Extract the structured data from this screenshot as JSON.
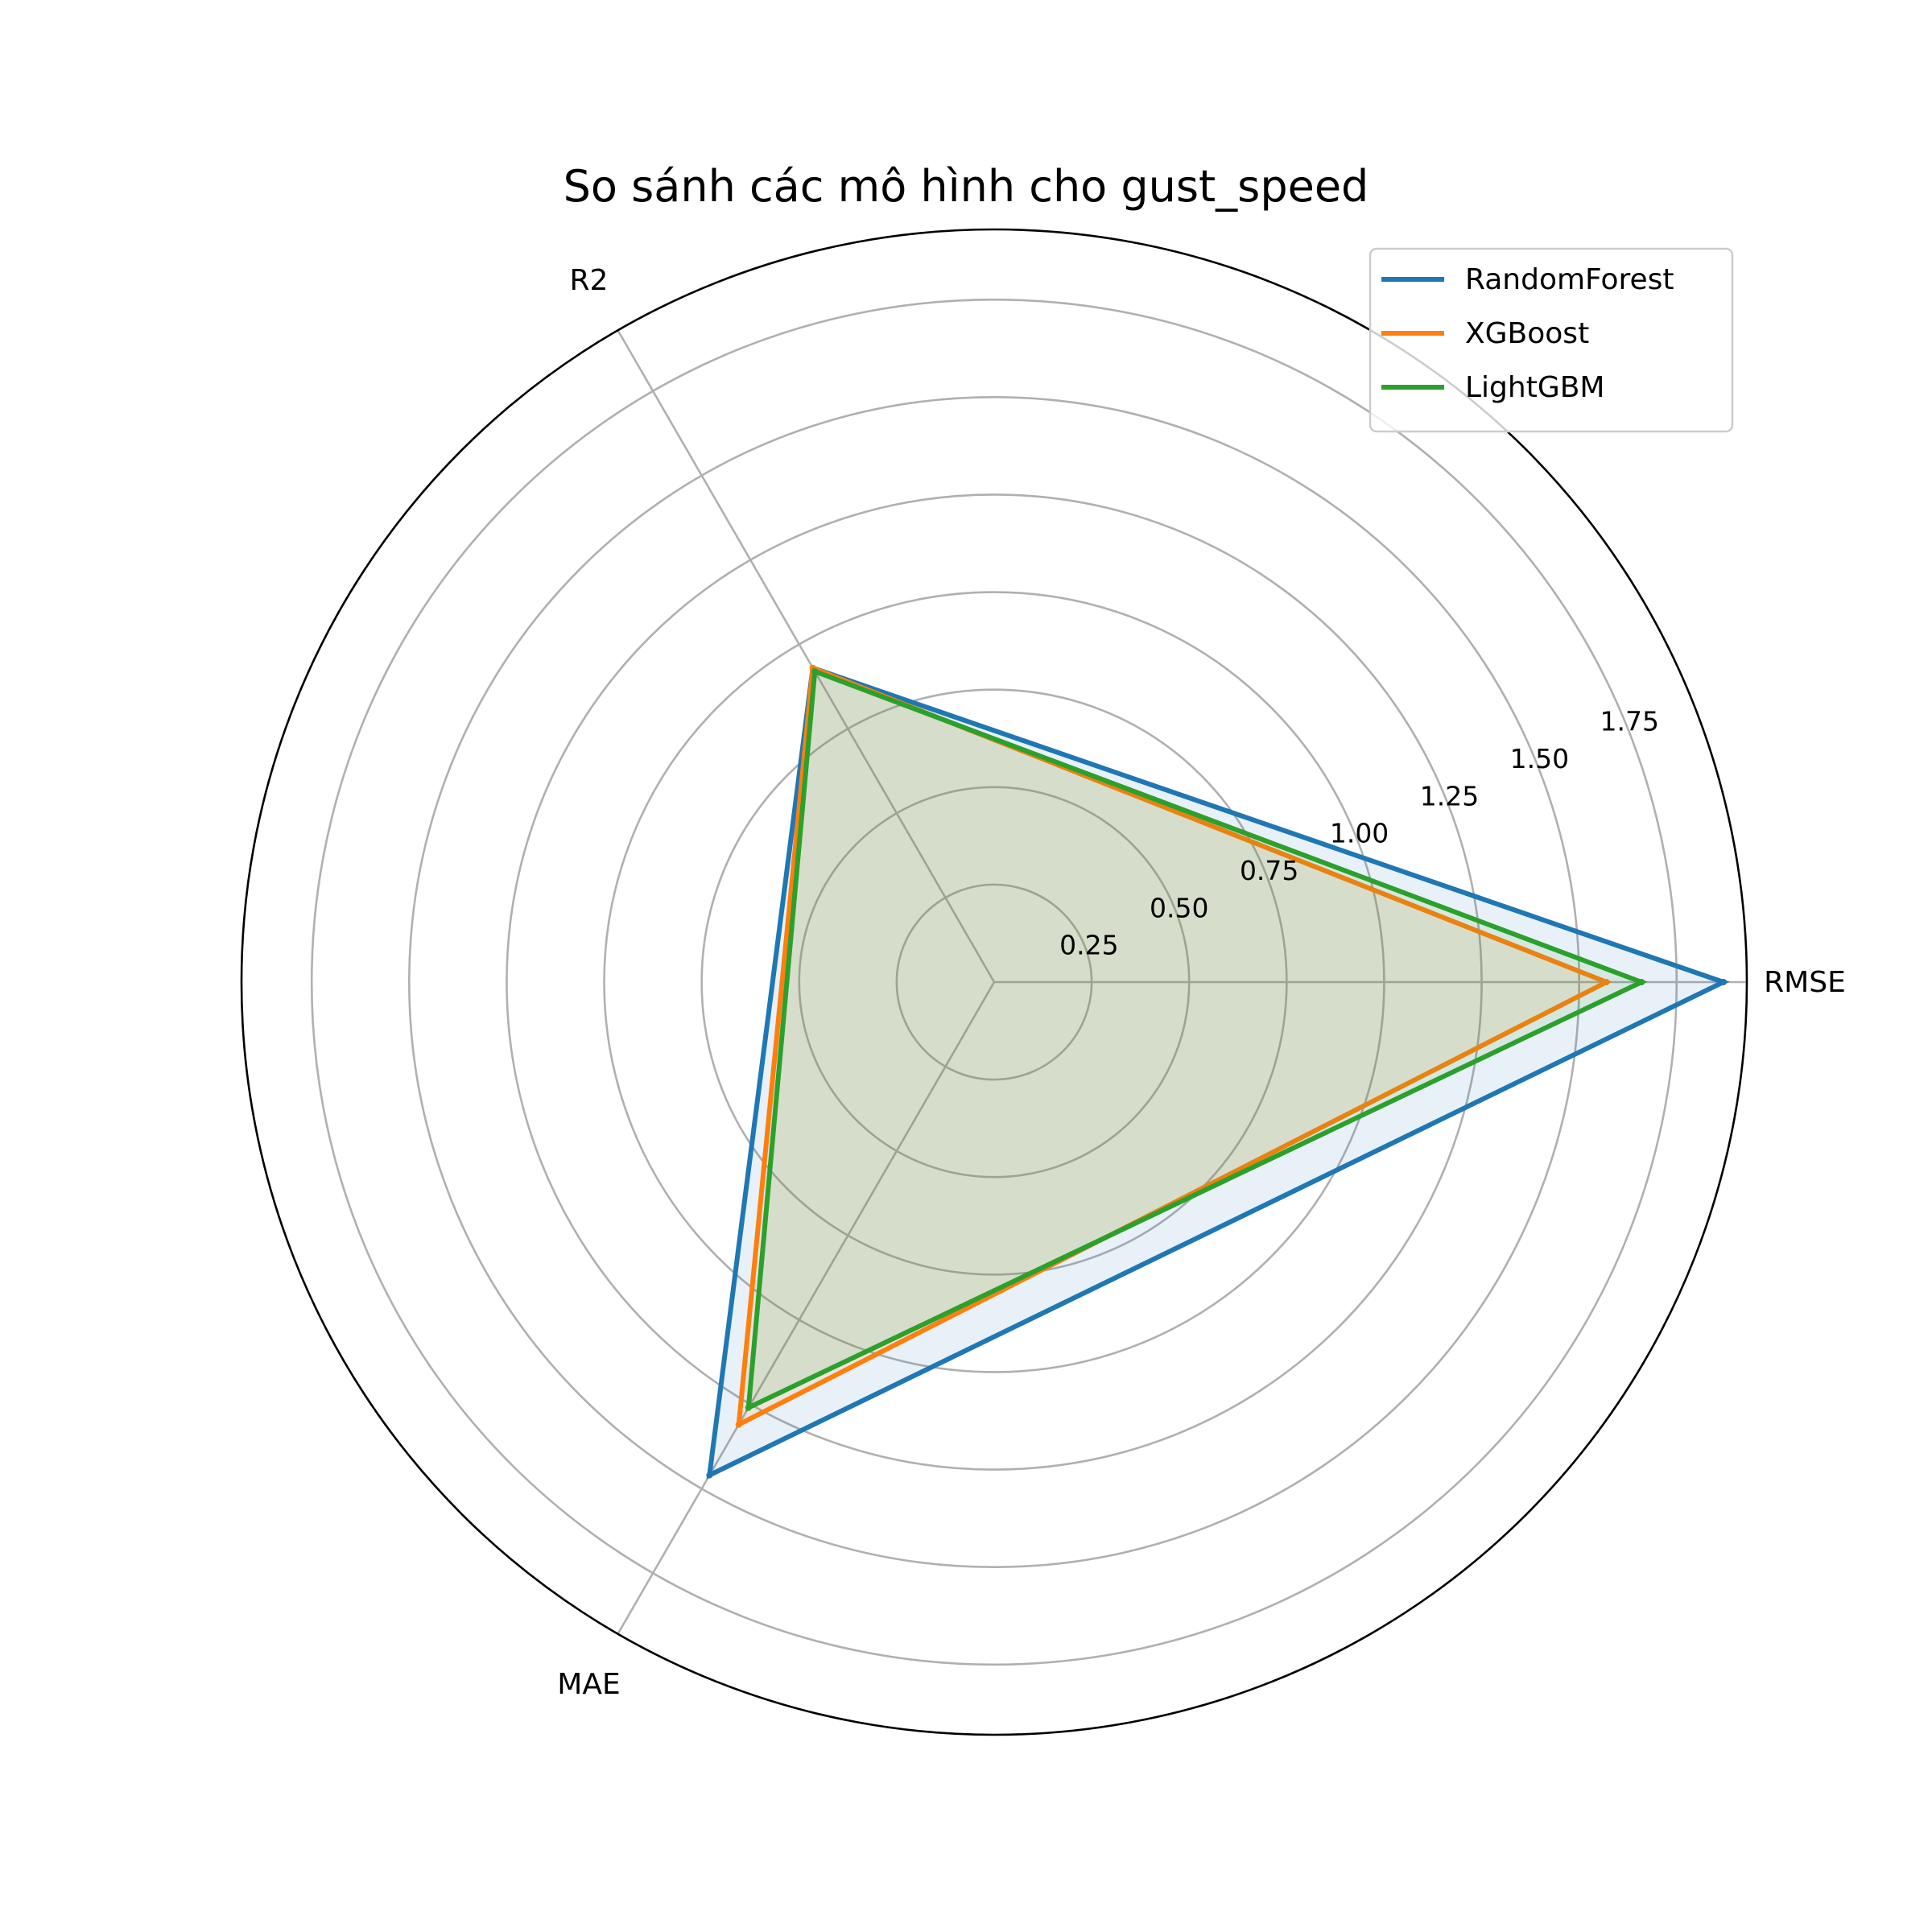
{
  "chart_data": {
    "type": "radar",
    "title": "So sánh các mô hình cho gust_speed",
    "axes": [
      "RMSE",
      "R2",
      "MAE"
    ],
    "radial_ticks": [
      "0.25",
      "0.50",
      "0.75",
      "1.00",
      "1.25",
      "1.50",
      "1.75"
    ],
    "radial_tick_values": [
      0.25,
      0.5,
      0.75,
      1.0,
      1.25,
      1.5,
      1.75
    ],
    "rmax": 1.93,
    "grid": true,
    "legend_position": "top-right",
    "series": [
      {
        "name": "RandomForest",
        "color": "#1f77b4",
        "values": [
          1.87,
          0.93,
          1.46
        ]
      },
      {
        "name": "XGBoost",
        "color": "#ff7f0e",
        "values": [
          1.57,
          0.93,
          1.31
        ]
      },
      {
        "name": "LightGBM",
        "color": "#2ca02c",
        "values": [
          1.66,
          0.92,
          1.26
        ]
      }
    ]
  }
}
